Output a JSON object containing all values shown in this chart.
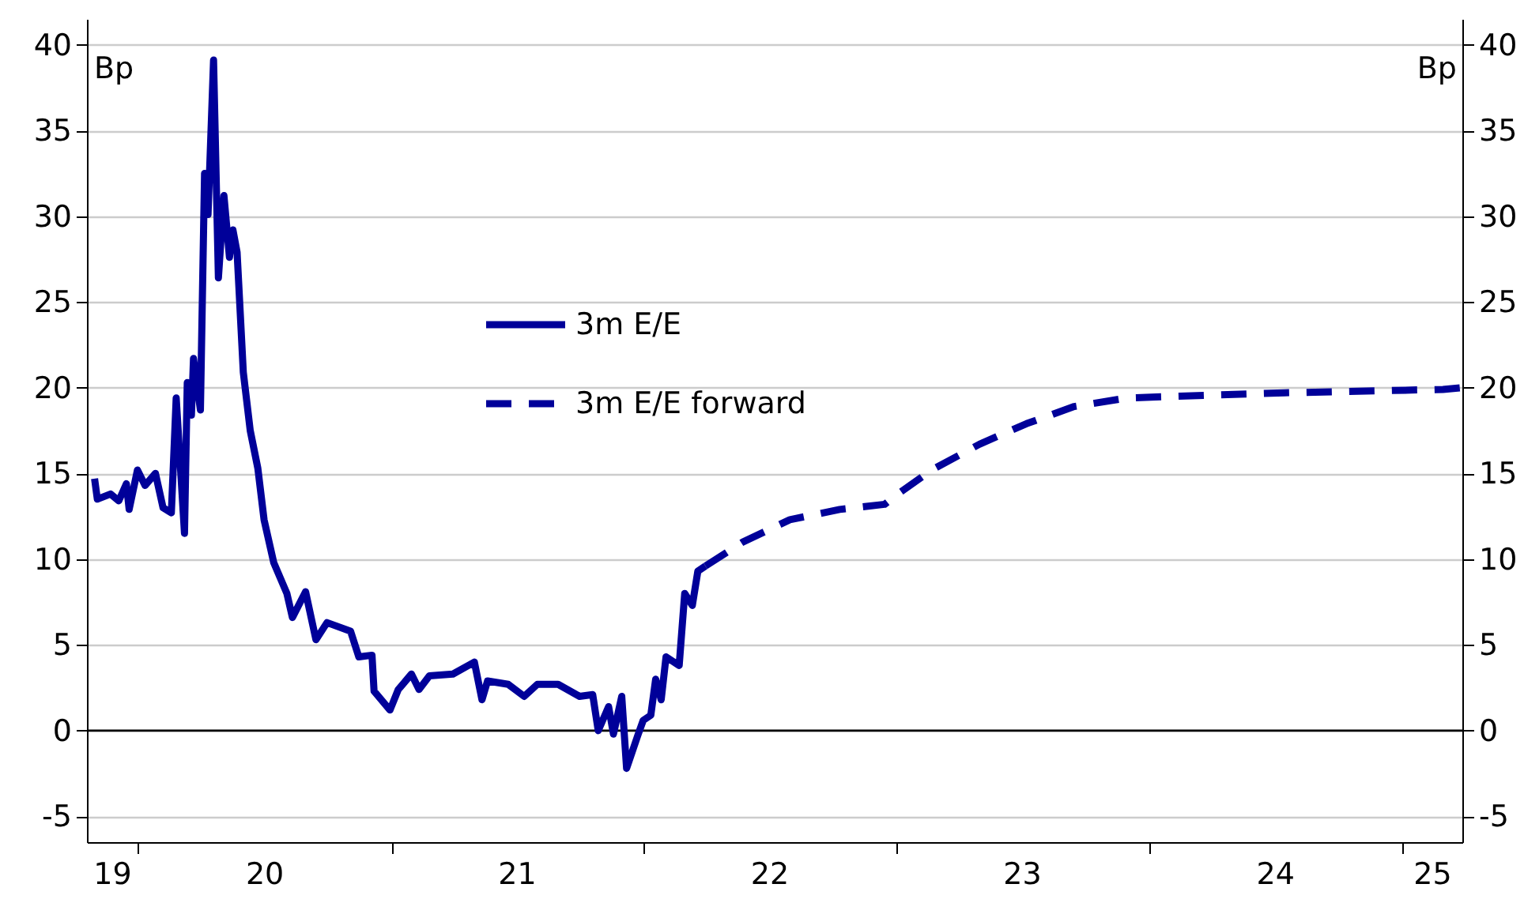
{
  "chart_data": {
    "type": "line",
    "ylabel": "Bp",
    "y2label": "Bp",
    "series": [
      {
        "name": "3m E/E",
        "color": "#000099",
        "line_style": "solid",
        "x": [
          "2019-10-30",
          "2019-11-03",
          "2019-11-22",
          "2019-12-04",
          "2019-12-15",
          "2019-12-19",
          "2019-12-31",
          "2020-01-11",
          "2020-01-26",
          "2020-02-06",
          "2020-02-18",
          "2020-02-25",
          "2020-03-08",
          "2020-03-12",
          "2020-03-18",
          "2020-03-21",
          "2020-03-31",
          "2020-04-06",
          "2020-04-11",
          "2020-04-19",
          "2020-04-26",
          "2020-05-04",
          "2020-05-12",
          "2020-05-17",
          "2020-05-23",
          "2020-06-01",
          "2020-06-11",
          "2020-06-22",
          "2020-07-01",
          "2020-07-15",
          "2020-08-03",
          "2020-08-11",
          "2020-08-30",
          "2020-09-14",
          "2020-09-30",
          "2020-11-03",
          "2020-11-15",
          "2020-12-04",
          "2020-12-07",
          "2020-12-30",
          "2021-01-11",
          "2021-01-30",
          "2021-02-10",
          "2021-02-25",
          "2021-03-31",
          "2021-05-01",
          "2021-05-12",
          "2021-05-20",
          "2021-06-19",
          "2021-07-12",
          "2021-07-31",
          "2021-08-30",
          "2021-09-30",
          "2021-10-19",
          "2021-10-27",
          "2021-11-11",
          "2021-11-18",
          "2021-11-30",
          "2021-12-07",
          "2021-12-23",
          "2021-12-31",
          "2022-01-11",
          "2022-01-18",
          "2022-01-26",
          "2022-02-02",
          "2022-02-21",
          "2022-03-01",
          "2022-03-12",
          "2022-03-20",
          "2022-03-31"
        ],
        "values": [
          14.7,
          13.5,
          13.8,
          13.4,
          14.4,
          12.9,
          15.2,
          14.3,
          15.0,
          13.0,
          12.7,
          19.4,
          11.5,
          20.3,
          18.4,
          21.7,
          18.7,
          32.5,
          30.1,
          39.1,
          26.4,
          31.2,
          27.6,
          29.2,
          27.9,
          20.9,
          17.5,
          15.3,
          12.3,
          9.8,
          8.0,
          6.6,
          8.1,
          5.3,
          6.3,
          5.8,
          4.3,
          4.4,
          2.3,
          1.2,
          2.4,
          3.3,
          2.4,
          3.2,
          3.3,
          4.0,
          1.8,
          2.9,
          2.7,
          2.0,
          2.7,
          2.7,
          2.0,
          2.1,
          0.0,
          1.4,
          -0.2,
          2.0,
          -2.2,
          -0.3,
          0.6,
          0.9,
          3.0,
          1.8,
          4.3,
          3.8,
          8.0,
          7.3,
          9.3,
          9.6
        ]
      },
      {
        "name": "3m E/E forward",
        "color": "#000099",
        "line_style": "dashed",
        "x": [
          "2022-03-31",
          "2022-05-24",
          "2022-07-31",
          "2022-10-11",
          "2022-12-15",
          "2023-01-03",
          "2023-02-21",
          "2023-05-01",
          "2023-07-08",
          "2023-09-15",
          "2023-11-30",
          "2024-02-14",
          "2024-07-15",
          "2025-03-01",
          "2025-03-28"
        ],
        "values": [
          9.6,
          11.0,
          12.3,
          12.9,
          13.2,
          13.8,
          15.2,
          16.7,
          17.9,
          18.9,
          19.4,
          19.5,
          19.7,
          19.9,
          20.0
        ]
      }
    ],
    "xlim": [
      "2019-10-19",
      "2025-03-29"
    ],
    "xticks": [
      {
        "value": "2019-11-24",
        "label": "19"
      },
      {
        "value": "2020-01-01",
        "label": null
      },
      {
        "value": "2020-07-01",
        "label": "20"
      },
      {
        "value": "2021-01-01",
        "label": null
      },
      {
        "value": "2021-07-01",
        "label": "21"
      },
      {
        "value": "2022-01-01",
        "label": null
      },
      {
        "value": "2022-07-01",
        "label": "22"
      },
      {
        "value": "2023-01-01",
        "label": null
      },
      {
        "value": "2023-07-01",
        "label": "23"
      },
      {
        "value": "2024-01-01",
        "label": null
      },
      {
        "value": "2024-07-01",
        "label": "24"
      },
      {
        "value": "2025-01-01",
        "label": null
      },
      {
        "value": "2025-02-13",
        "label": "25"
      }
    ],
    "ylim": [
      -6.5,
      41.5
    ],
    "yticks": [
      -5,
      0,
      5,
      10,
      15,
      20,
      25,
      30,
      35,
      40
    ],
    "y2lim": [
      -6.5,
      41.5
    ],
    "y2ticks": [
      -5,
      0,
      5,
      10,
      15,
      20,
      25,
      30,
      35,
      40
    ],
    "grid": "y",
    "legend": "top left",
    "ref_lines": [
      {
        "axis": "y",
        "value": 0,
        "color": "#000000"
      }
    ]
  }
}
